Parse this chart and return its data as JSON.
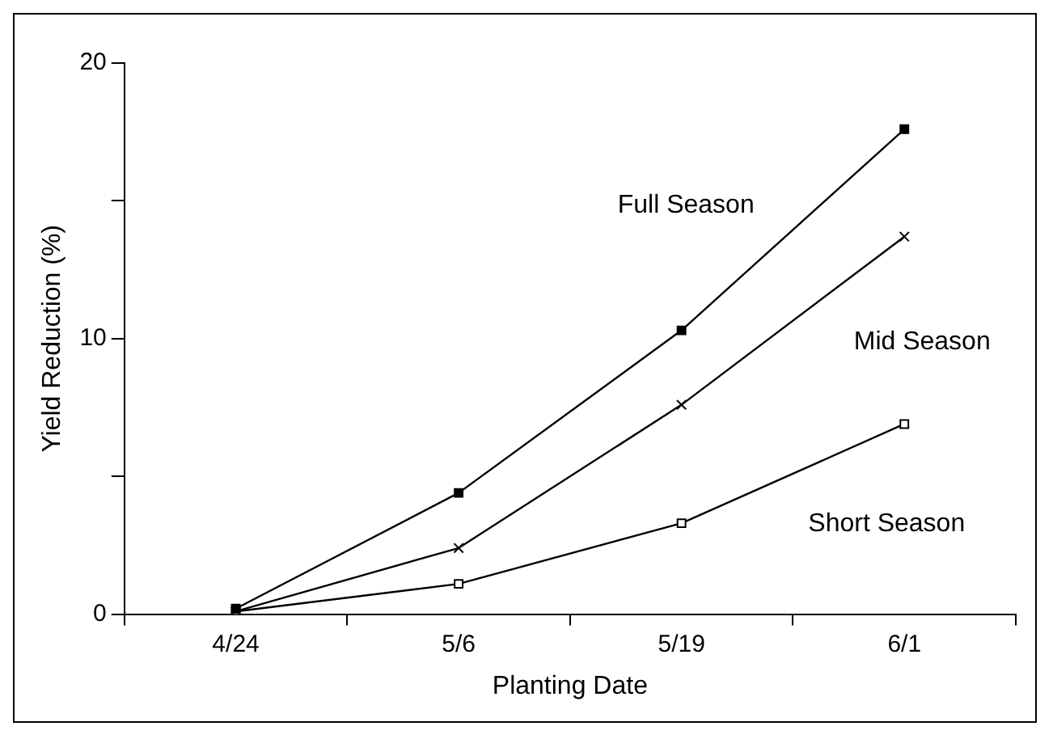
{
  "chart_data": {
    "type": "line",
    "xlabel": "Planting Date",
    "ylabel": "Yield Reduction (%)",
    "categories": [
      "4/24",
      "5/6",
      "5/19",
      "6/1"
    ],
    "series": [
      {
        "name": "Full Season",
        "color": "#000000",
        "marker": "square",
        "values": [
          0.2,
          4.4,
          10.3,
          17.6
        ]
      },
      {
        "name": "Mid Season",
        "color": "#000000",
        "marker": "cross",
        "values": [
          0.1,
          2.4,
          7.6,
          13.7
        ]
      },
      {
        "name": "Short Season",
        "color": "#000000",
        "marker": "square",
        "values": [
          0.1,
          1.1,
          3.3,
          6.9
        ]
      }
    ],
    "ylim": [
      0,
      20
    ],
    "yticks": [
      0,
      {
        "value": 5,
        "label": null
      },
      10,
      {
        "value": 15,
        "label": null
      },
      20
    ],
    "grid": false,
    "legend": false,
    "line_style": "solid"
  }
}
